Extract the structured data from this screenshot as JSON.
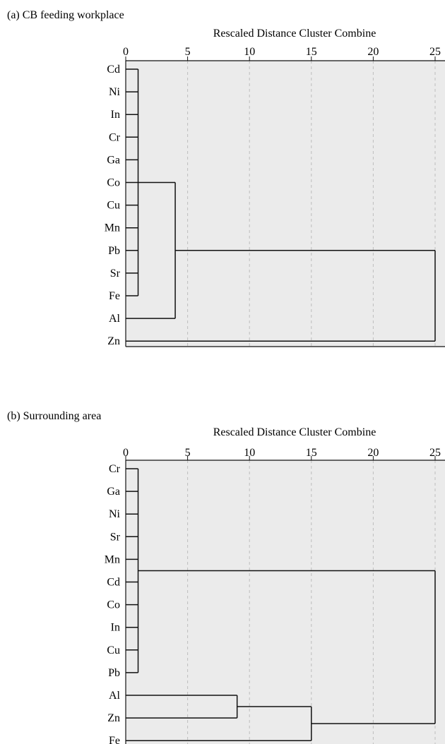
{
  "chart_data": [
    {
      "type": "dendrogram",
      "title": "(a) CB feeding workplace",
      "xlabel": "Rescaled Distance Cluster Combine",
      "xlim": [
        0,
        25
      ],
      "ticks": [
        0,
        5,
        10,
        15,
        20,
        25
      ],
      "grid": true,
      "leaves": [
        "Cd",
        "Ni",
        "In",
        "Cr",
        "Ga",
        "Co",
        "Cu",
        "Mn",
        "Pb",
        "Sr",
        "Fe",
        "Al",
        "Zn"
      ],
      "merges": [
        {
          "members": [
            "Cd",
            "Ni",
            "In",
            "Cr",
            "Ga",
            "Co",
            "Cu",
            "Mn",
            "Pb",
            "Sr",
            "Fe"
          ],
          "distance": 1
        },
        {
          "members": [
            "Cd",
            "Ni",
            "In",
            "Cr",
            "Ga",
            "Co",
            "Cu",
            "Mn",
            "Pb",
            "Sr",
            "Fe",
            "Al"
          ],
          "distance": 4
        },
        {
          "members": [
            "Cd",
            "Ni",
            "In",
            "Cr",
            "Ga",
            "Co",
            "Cu",
            "Mn",
            "Pb",
            "Sr",
            "Fe",
            "Al",
            "Zn"
          ],
          "distance": 25
        }
      ]
    },
    {
      "type": "dendrogram",
      "title": "(b) Surrounding area",
      "xlabel": "Rescaled Distance Cluster Combine",
      "xlim": [
        0,
        25
      ],
      "ticks": [
        0,
        5,
        10,
        15,
        20,
        25
      ],
      "grid": true,
      "leaves": [
        "Cr",
        "Ga",
        "Ni",
        "Sr",
        "Mn",
        "Cd",
        "Co",
        "In",
        "Cu",
        "Pb",
        "Al",
        "Zn",
        "Fe"
      ],
      "merges": [
        {
          "members": [
            "Cr",
            "Ga",
            "Ni",
            "Sr",
            "Mn",
            "Cd",
            "Co",
            "In",
            "Cu",
            "Pb"
          ],
          "distance": 1
        },
        {
          "members": [
            "Al",
            "Zn"
          ],
          "distance": 9
        },
        {
          "members": [
            "Al",
            "Zn",
            "Fe"
          ],
          "distance": 15
        },
        {
          "members": [
            "Cr",
            "Ga",
            "Ni",
            "Sr",
            "Mn",
            "Cd",
            "Co",
            "In",
            "Cu",
            "Pb",
            "Al",
            "Zn",
            "Fe"
          ],
          "distance": 25
        }
      ]
    }
  ]
}
